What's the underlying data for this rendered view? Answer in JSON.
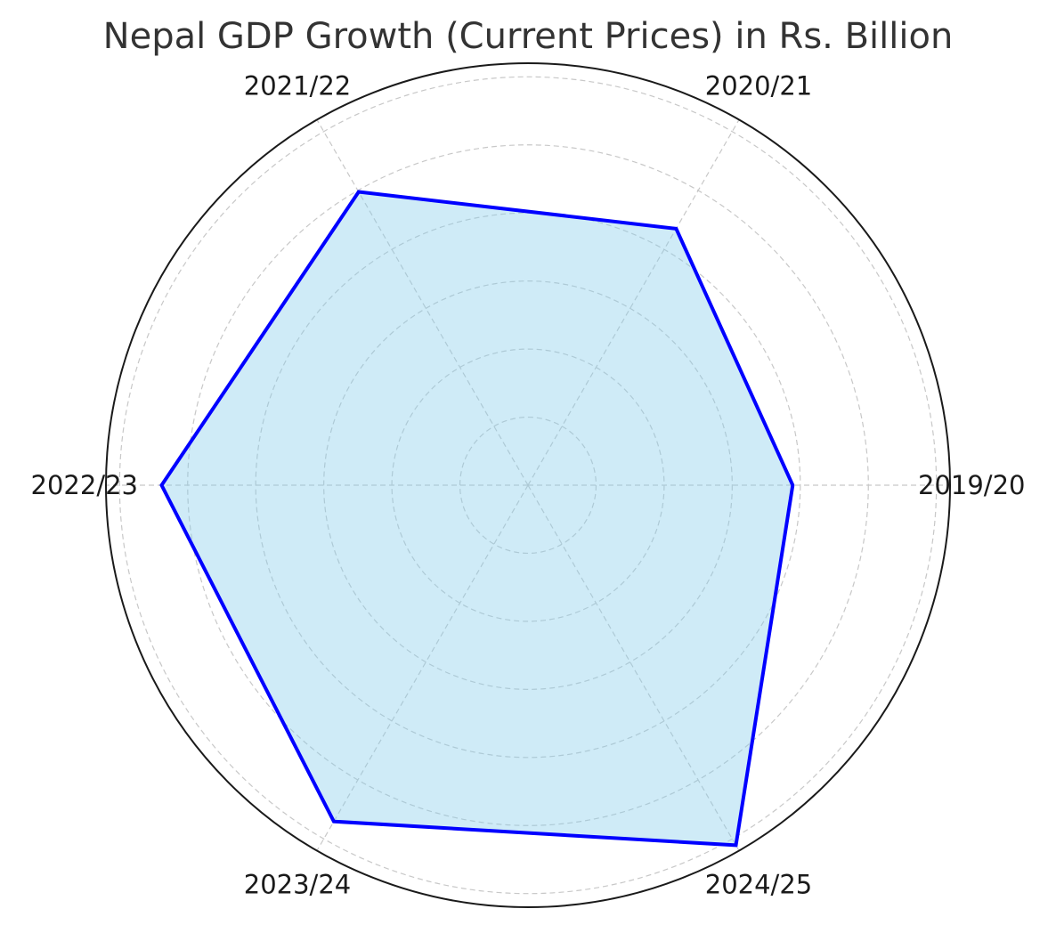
{
  "chart_data": {
    "type": "radar",
    "title": "Nepal GDP Growth (Current Prices) in Rs. Billion",
    "categories": [
      "2019/20",
      "2020/21",
      "2021/22",
      "2022/23",
      "2023/24",
      "2024/25"
    ],
    "series": [
      {
        "values": [
          3889,
          4352,
          4977,
          5382,
          5705,
          6108
        ]
      }
    ],
    "rlim": [
      0,
      6200
    ],
    "radial_ticks": [
      1000,
      2000,
      3000,
      4000,
      5000,
      6000
    ],
    "radial_tick_labels_visible": false,
    "grid": true,
    "start_angle_deg": 0,
    "direction": "counterclockwise",
    "colors": {
      "line": "#0000ff",
      "fill": "#87ceeb",
      "fill_opacity": 0.4,
      "grid": "#c8c8c8",
      "frame": "#1a1a1a"
    }
  }
}
